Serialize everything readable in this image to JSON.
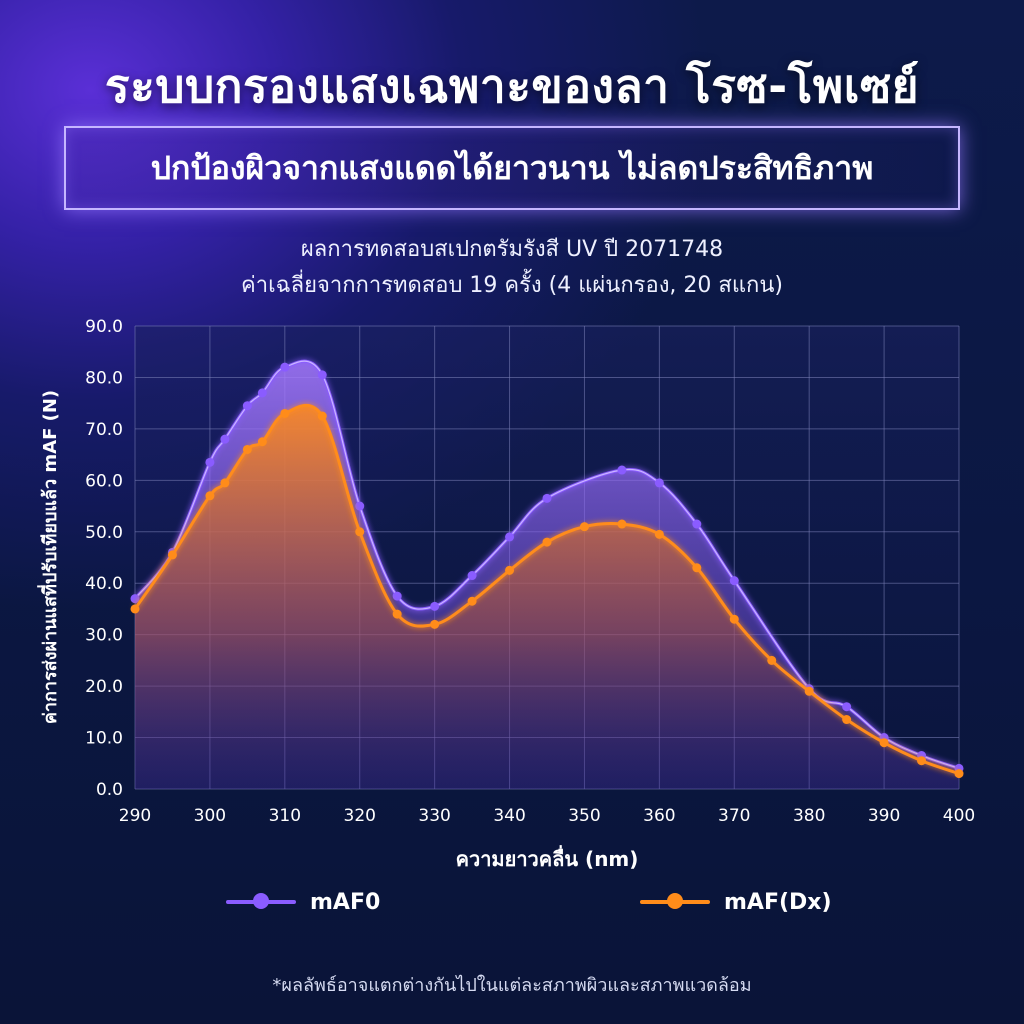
{
  "header": {
    "title": "ระบบกรองแสงเฉพาะของลา โรซ-โพเซย์",
    "subtitle": "ปกป้องผิวจากแสงแดดได้ยาวนาน ไม่ลดประสิทธิภาพ"
  },
  "footnote": "*ผลลัพธ์อาจแตกต่างกันไปในแต่ละสภาพผิวและสภาพแวดล้อม",
  "colors": {
    "series_purple": "#8a5cff",
    "series_orange": "#ff8c1a",
    "grid": "#7b82b8"
  },
  "chart_data": {
    "type": "area",
    "title": "ผลการทดสอบสเปกตรัมรังสี UV ปี 2071748",
    "subtitle": "ค่าเฉลี่ยจากการทดสอบ 19 ครั้ง (4 แผ่นกรอง, 20 สแกน)",
    "xlabel": "ความยาวคลื่น (nm)",
    "ylabel": "ค่าการส่งผ่านแสที่ปรับเทียบแล้ว mAF (N)",
    "xlim": [
      290,
      400
    ],
    "ylim": [
      0,
      90
    ],
    "x_ticks": [
      "290",
      "300",
      "310",
      "320",
      "330",
      "340",
      "350",
      "360",
      "370",
      "380",
      "390",
      "400"
    ],
    "y_ticks": [
      "0.0",
      "10.0",
      "20.0",
      "30.0",
      "40.0",
      "50.0",
      "60.0",
      "70.0",
      "80.0",
      "90.0"
    ],
    "grid": true,
    "legend_position": "bottom",
    "series": [
      {
        "name": "mAF0",
        "color": "#8a5cff",
        "x": [
          290,
          295,
          300,
          302,
          305,
          307,
          310,
          315,
          320,
          325,
          330,
          335,
          340,
          345,
          355,
          360,
          365,
          370,
          380,
          385,
          390,
          395,
          400
        ],
        "y": [
          37,
          46,
          63.5,
          68,
          74.5,
          77,
          82,
          80.5,
          55,
          37.5,
          35.5,
          41.5,
          49,
          56.5,
          62,
          59.5,
          51.5,
          40.5,
          19.5,
          16,
          10,
          6.5,
          4
        ]
      },
      {
        "name": "mAF(Dx)",
        "color": "#ff8c1a",
        "x": [
          290,
          295,
          300,
          302,
          305,
          307,
          310,
          315,
          320,
          325,
          330,
          335,
          340,
          345,
          350,
          355,
          360,
          365,
          370,
          375,
          380,
          385,
          390,
          395,
          400
        ],
        "y": [
          35,
          45.5,
          57,
          59.5,
          66,
          67.5,
          73,
          72.5,
          50,
          34,
          32,
          36.5,
          42.5,
          48,
          51,
          51.5,
          49.5,
          43,
          33,
          25,
          19,
          13.5,
          9,
          5.5,
          3
        ]
      }
    ]
  }
}
